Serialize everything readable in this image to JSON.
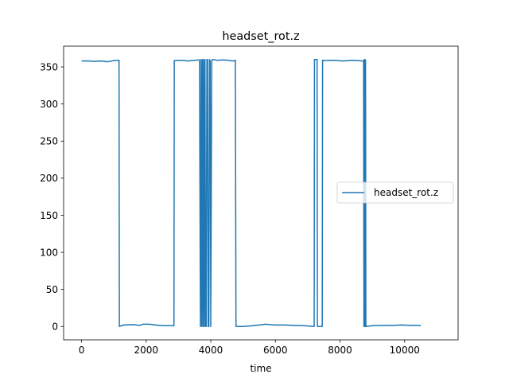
{
  "chart_data": {
    "type": "line",
    "title": "headset_rot.z",
    "xlabel": "time",
    "ylabel": "",
    "xlim": [
      -555,
      11655
    ],
    "ylim": [
      -18,
      378
    ],
    "xticks": [
      0,
      2000,
      4000,
      6000,
      8000,
      10000
    ],
    "yticks": [
      0,
      50,
      100,
      150,
      200,
      250,
      300,
      350
    ],
    "grid": false,
    "legend": "center-right",
    "line_color": "#1f77b4",
    "series": [
      {
        "name": "headset_rot.z",
        "x": [
          0,
          200,
          400,
          600,
          800,
          1000,
          1160,
          1170,
          1300,
          1600,
          1800,
          1900,
          2100,
          2400,
          2600,
          2860,
          2870,
          3100,
          3300,
          3500,
          3650,
          3680,
          3700,
          3720,
          3740,
          3760,
          3780,
          3800,
          3820,
          3840,
          3860,
          3880,
          3900,
          3920,
          3940,
          3960,
          3980,
          4000,
          4030,
          4060,
          4200,
          4400,
          4700,
          4760,
          4780,
          5000,
          5300,
          5500,
          5700,
          6000,
          6300,
          6600,
          6900,
          7200,
          7210,
          7220,
          7270,
          7290,
          7300,
          7450,
          7460,
          7500,
          7800,
          8100,
          8400,
          8700,
          8730,
          8740,
          8750,
          8760,
          8770,
          8780,
          8790,
          8800,
          9000,
          9300,
          9600,
          9900,
          10200,
          10500
        ],
        "y": [
          358,
          358,
          357.5,
          358,
          357,
          358.5,
          359,
          0,
          2,
          2.5,
          1.5,
          3,
          3,
          1.5,
          1,
          1,
          358.5,
          359,
          358,
          359,
          359.5,
          0,
          360,
          0,
          360,
          0,
          360,
          0,
          360,
          0,
          0,
          360,
          360,
          0,
          0,
          360,
          358,
          0,
          359,
          360,
          359,
          359.5,
          358,
          359,
          0,
          0,
          1,
          2,
          3,
          2,
          2,
          1.5,
          1,
          0,
          360,
          360,
          360,
          360,
          0,
          0,
          359,
          358.5,
          359,
          358,
          359,
          358,
          358,
          0,
          360,
          0,
          360,
          0,
          359,
          0,
          1,
          1.5,
          1.5,
          2,
          1.5,
          1.5
        ]
      }
    ]
  }
}
